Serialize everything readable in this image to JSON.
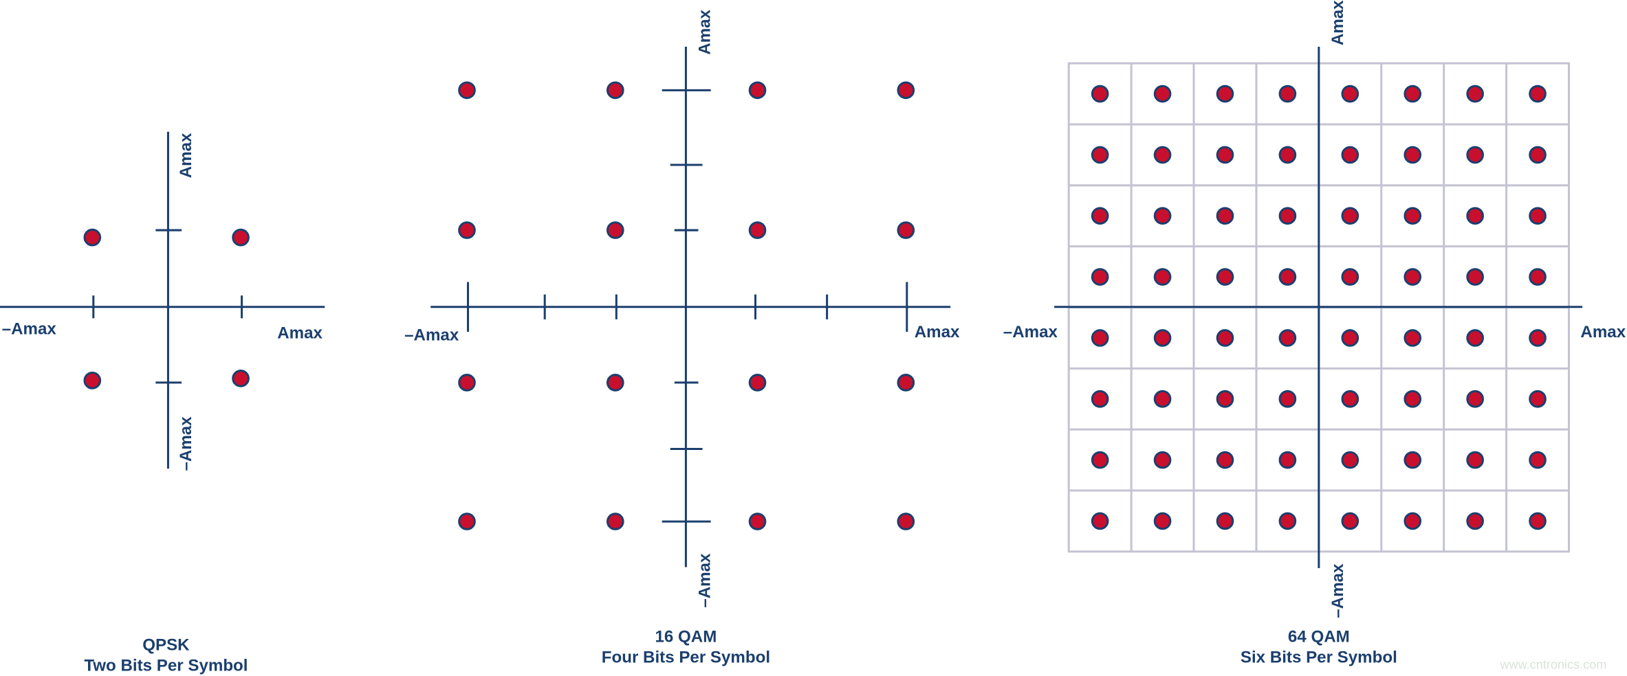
{
  "panels": [
    {
      "title": "QPSK",
      "subtitle": "Two Bits Per Symbol",
      "labels": {
        "top": "Amax",
        "left": "–Amax",
        "right": "Amax",
        "bottom": "–Amax"
      }
    },
    {
      "title": "16 QAM",
      "subtitle": "Four Bits Per Symbol",
      "labels": {
        "top": "Amax",
        "left": "–Amax",
        "right": "Amax",
        "bottom": "–Amax"
      }
    },
    {
      "title": "64 QAM",
      "subtitle": "Six Bits Per Symbol",
      "labels": {
        "top": "Amax",
        "left": "–Amax",
        "right": "Amax",
        "bottom": "–Amax"
      }
    }
  ],
  "watermark": "www.cntronics.com"
}
